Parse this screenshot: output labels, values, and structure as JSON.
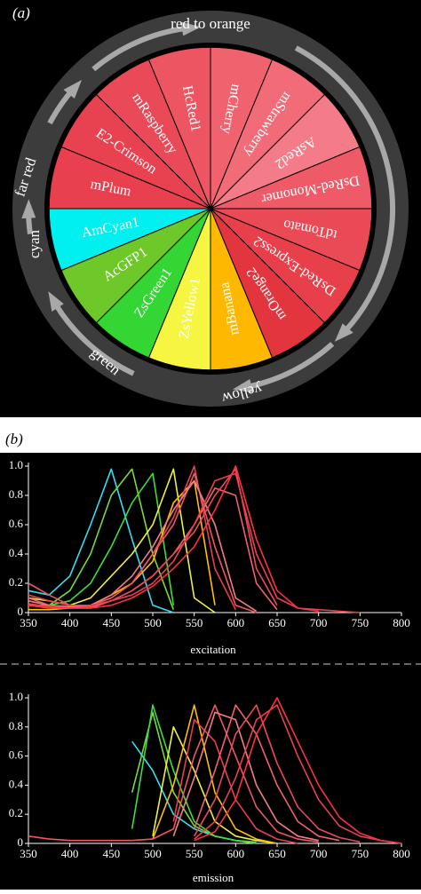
{
  "panel_a": "(a)",
  "panel_b": "(b)",
  "wheel": {
    "ring_labels": [
      "red to orange",
      "far red",
      "cyan",
      "green",
      "yellow"
    ],
    "slices": [
      {
        "label": "mCherry",
        "color": "#f0626e"
      },
      {
        "label": "mStrawberry",
        "color": "#f26b78"
      },
      {
        "label": "AsRed2",
        "color": "#f47c88"
      },
      {
        "label": "DsRed-Monomer",
        "color": "#ef5a68"
      },
      {
        "label": "tdTomato",
        "color": "#ea4a55"
      },
      {
        "label": "DsRed-Express2",
        "color": "#e8404b"
      },
      {
        "label": "mOrange2",
        "color": "#e3353d"
      },
      {
        "label": "mBanana",
        "color": "#ffb800"
      },
      {
        "label": "ZsYellow1",
        "color": "#f5f542"
      },
      {
        "label": "ZsGreen1",
        "color": "#33d633"
      },
      {
        "label": "AcGFP1",
        "color": "#6ec829"
      },
      {
        "label": "AmCyan1",
        "color": "#00f0f0"
      },
      {
        "label": "mPlum",
        "color": "#e8404e"
      },
      {
        "label": "E2-Crimson",
        "color": "#e84250"
      },
      {
        "label": "mRaspberry",
        "color": "#ea4a58"
      },
      {
        "label": "HcRed1",
        "color": "#ee5562"
      }
    ]
  },
  "chart_data": [
    {
      "type": "line",
      "x_label": "excitation",
      "x": [
        350,
        375,
        400,
        425,
        450,
        475,
        500,
        525,
        550,
        575,
        600,
        625,
        650,
        675,
        700,
        725,
        750,
        775,
        800
      ],
      "xlim": [
        350,
        800
      ],
      "xticks": [
        350,
        400,
        450,
        500,
        550,
        600,
        650,
        700,
        750,
        800
      ],
      "ylim": [
        0,
        1
      ],
      "yticks": [
        0,
        0.2,
        0.4,
        0.6,
        0.8,
        {
          "value": 1,
          "label": "1.0"
        }
      ],
      "series": [
        {
          "color": "#33e0f0",
          "values": [
            0.15,
            0.12,
            0.25,
            0.6,
            0.98,
            0.5,
            0.05,
            0,
            null,
            null,
            null,
            null,
            null,
            null,
            null,
            null,
            null,
            null,
            null
          ]
        },
        {
          "color": "#7ad83a",
          "values": [
            0.05,
            0.05,
            0.15,
            0.4,
            0.8,
            0.98,
            0.4,
            0.02,
            null,
            null,
            null,
            null,
            null,
            null,
            null,
            null,
            null,
            null,
            null
          ]
        },
        {
          "color": "#3ce03c",
          "values": [
            0.05,
            0.05,
            0.08,
            0.2,
            0.45,
            0.75,
            0.95,
            0.05,
            null,
            null,
            null,
            null,
            null,
            null,
            null,
            null,
            null,
            null,
            null
          ]
        },
        {
          "color": "#f0f040",
          "values": [
            0.1,
            0.08,
            0.05,
            0.1,
            0.25,
            0.4,
            0.6,
            0.98,
            0.1,
            0,
            null,
            null,
            null,
            null,
            null,
            null,
            null,
            null,
            null
          ]
        },
        {
          "color": "#ffc000",
          "values": [
            0.02,
            0.02,
            0.03,
            0.05,
            0.12,
            0.2,
            0.35,
            0.75,
            0.9,
            0.05,
            null,
            null,
            null,
            null,
            null,
            null,
            null,
            null,
            null
          ]
        },
        {
          "color": "#e8404b",
          "values": [
            0.05,
            0.03,
            0.03,
            0.05,
            0.1,
            0.2,
            0.4,
            0.65,
            1,
            0.3,
            0.02,
            null,
            null,
            null,
            null,
            null,
            null,
            null,
            null
          ]
        },
        {
          "color": "#f05560",
          "values": [
            0.2,
            0.12,
            0.05,
            0.05,
            0.1,
            0.2,
            0.4,
            0.6,
            0.95,
            0.45,
            0.05,
            0,
            null,
            null,
            null,
            null,
            null,
            null,
            null
          ]
        },
        {
          "color": "#f47c88",
          "values": [
            0.08,
            0.05,
            0.04,
            0.05,
            0.12,
            0.25,
            0.45,
            0.7,
            0.9,
            0.6,
            0.1,
            0.01,
            null,
            null,
            null,
            null,
            null,
            null,
            null
          ]
        },
        {
          "color": "#f0626e",
          "values": [
            0.1,
            0.05,
            0.03,
            0.03,
            0.08,
            0.15,
            0.25,
            0.4,
            0.6,
            0.85,
            0.8,
            0.2,
            0.02,
            null,
            null,
            null,
            null,
            null,
            null
          ]
        },
        {
          "color": "#ea4a58",
          "values": [
            0.06,
            0.04,
            0.03,
            0.04,
            0.08,
            0.15,
            0.25,
            0.4,
            0.55,
            0.8,
            0.98,
            0.3,
            0.05,
            null,
            null,
            null,
            null,
            null,
            null
          ]
        },
        {
          "color": "#e8404e",
          "values": [
            0.12,
            0.08,
            0.05,
            0.05,
            0.08,
            0.12,
            0.2,
            0.35,
            0.6,
            0.9,
            0.95,
            0.4,
            0.1,
            0.03,
            0.02,
            0.01,
            0,
            null,
            null
          ]
        },
        {
          "color": "#ff3040",
          "values": [
            0.05,
            0.04,
            0.03,
            0.03,
            0.05,
            0.1,
            0.18,
            0.3,
            0.45,
            0.7,
            1,
            0.5,
            0.15,
            0.03,
            0.01,
            null,
            null,
            null,
            null
          ]
        }
      ]
    },
    {
      "type": "line",
      "x_label": "emission",
      "x": [
        350,
        375,
        400,
        425,
        450,
        475,
        500,
        525,
        550,
        575,
        600,
        625,
        650,
        675,
        700,
        725,
        750,
        775,
        800
      ],
      "xlim": [
        350,
        800
      ],
      "xticks": [
        350,
        400,
        450,
        500,
        550,
        600,
        650,
        700,
        750,
        800
      ],
      "ylim": [
        0,
        1
      ],
      "yticks": [
        0,
        0.2,
        0.4,
        0.6,
        0.8,
        {
          "value": 1,
          "label": "1.0"
        }
      ],
      "series": [
        {
          "color": "#33e0f0",
          "values": [
            null,
            null,
            null,
            null,
            null,
            0.7,
            0.5,
            0.2,
            0.1,
            0.05,
            0.02,
            0,
            null,
            null,
            null,
            null,
            null,
            null,
            null
          ]
        },
        {
          "color": "#7ad83a",
          "values": [
            null,
            null,
            null,
            null,
            null,
            0.35,
            0.9,
            0.35,
            0.12,
            0.05,
            0.02,
            0,
            null,
            null,
            null,
            null,
            null,
            null,
            null
          ]
        },
        {
          "color": "#3ce03c",
          "values": [
            null,
            null,
            null,
            null,
            null,
            0.1,
            0.95,
            0.5,
            0.15,
            0.05,
            0.02,
            0.01,
            null,
            null,
            null,
            null,
            null,
            null,
            null
          ]
        },
        {
          "color": "#f0f040",
          "values": [
            null,
            null,
            null,
            null,
            null,
            null,
            0.05,
            0.8,
            0.5,
            0.15,
            0.05,
            0.02,
            0,
            null,
            null,
            null,
            null,
            null,
            null
          ]
        },
        {
          "color": "#ffc000",
          "values": [
            null,
            null,
            null,
            null,
            null,
            null,
            0.03,
            0.4,
            0.95,
            0.35,
            0.1,
            0.03,
            0,
            null,
            null,
            null,
            null,
            null,
            null
          ]
        },
        {
          "color": "#e8404b",
          "values": [
            null,
            null,
            null,
            null,
            null,
            null,
            null,
            0.15,
            0.85,
            0.7,
            0.3,
            0.1,
            0.03,
            0,
            null,
            null,
            null,
            null,
            null
          ]
        },
        {
          "color": "#f05560",
          "values": [
            0.05,
            0.03,
            0.02,
            0.02,
            0.02,
            0.02,
            0.03,
            0.1,
            0.6,
            0.95,
            0.6,
            0.25,
            0.08,
            0.03,
            0.01,
            null,
            null,
            null,
            null
          ]
        },
        {
          "color": "#f47c88",
          "values": [
            null,
            null,
            null,
            null,
            null,
            null,
            null,
            0.05,
            0.45,
            0.9,
            0.85,
            0.4,
            0.15,
            0.05,
            0.02,
            null,
            null,
            null,
            null
          ]
        },
        {
          "color": "#f0626e",
          "values": [
            null,
            null,
            null,
            null,
            null,
            null,
            null,
            null,
            0.1,
            0.5,
            0.95,
            0.75,
            0.4,
            0.15,
            0.05,
            0.02,
            null,
            null,
            null
          ]
        },
        {
          "color": "#ea4a58",
          "values": [
            null,
            null,
            null,
            null,
            null,
            null,
            null,
            null,
            0.05,
            0.3,
            0.75,
            0.95,
            0.55,
            0.25,
            0.1,
            0.04,
            0.01,
            null,
            null
          ]
        },
        {
          "color": "#e8404e",
          "values": [
            null,
            null,
            null,
            null,
            null,
            null,
            null,
            null,
            0.03,
            0.15,
            0.45,
            0.85,
            0.95,
            0.6,
            0.3,
            0.12,
            0.05,
            0.02,
            0
          ]
        },
        {
          "color": "#ff3040",
          "values": [
            null,
            null,
            null,
            null,
            null,
            null,
            null,
            null,
            0.02,
            0.08,
            0.3,
            0.75,
            1,
            0.7,
            0.4,
            0.18,
            0.07,
            0.02,
            0
          ]
        }
      ]
    }
  ]
}
